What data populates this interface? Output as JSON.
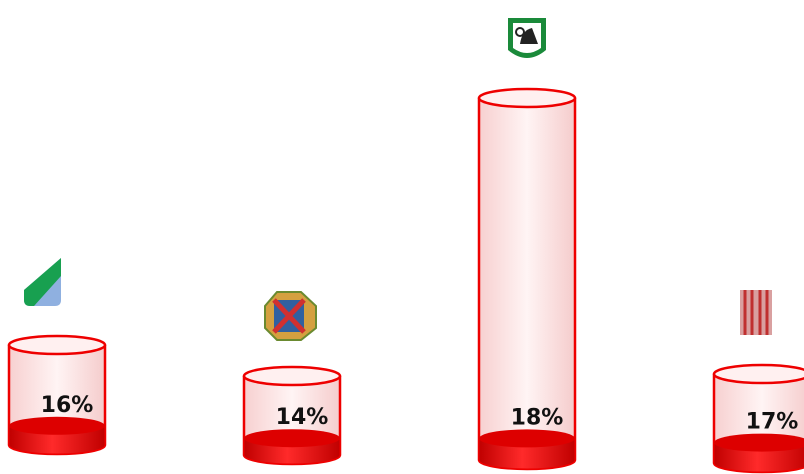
{
  "chart_data": {
    "type": "cylinder",
    "categories": [
      null,
      null,
      null,
      null
    ],
    "values": [
      16,
      14,
      18,
      17
    ],
    "value_labels": [
      "16%",
      "14%",
      "18%",
      "17%"
    ],
    "color": "#ee0000",
    "ylim": [
      0,
      100
    ]
  }
}
